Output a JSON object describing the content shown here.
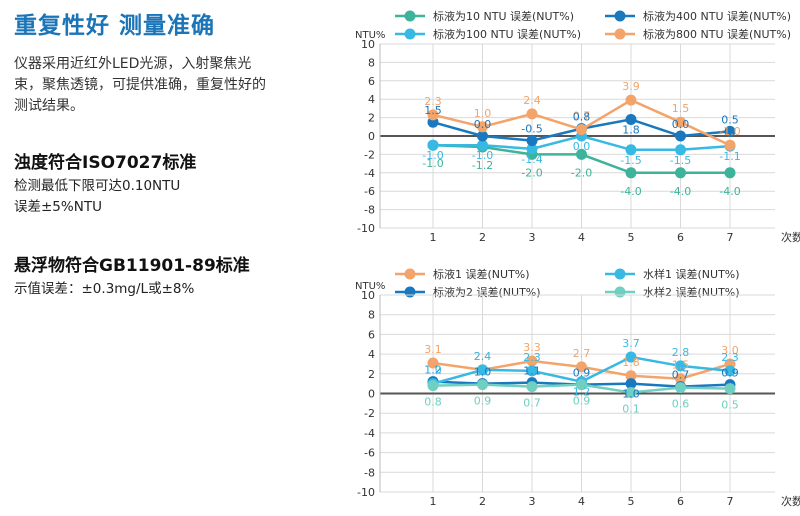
{
  "page": {
    "title": "重复性好 测量准确",
    "intro": "仪器采用近红外LED光源，入射聚焦光束，聚焦透镜，可提供准确，重复性好的测试结果。",
    "features": [
      {
        "heading": "浊度符合ISO7027标准",
        "lines": [
          "检测最低下限可达0.10NTU",
          "误差±5%NTU"
        ]
      },
      {
        "heading": "悬浮物符合GB11901-89标准",
        "lines": [
          "示值误差：±0.3mg/L或±8%"
        ]
      }
    ]
  },
  "chart_data": [
    {
      "type": "line",
      "ylabel": "NTU%",
      "xlabel": "次数",
      "x": [
        1,
        2,
        3,
        4,
        5,
        6,
        7
      ],
      "ylim": [
        -10,
        10
      ],
      "yticks": [
        10,
        8,
        6,
        4,
        2,
        0,
        -2,
        -4,
        -6,
        -8,
        -10
      ],
      "grid": true,
      "legend_position": "top",
      "series": [
        {
          "name": "标液为10 NTU 误差(NUT%)",
          "color": "#3db39b",
          "values": [
            -1.0,
            -1.2,
            -2.0,
            -2.0,
            -4.0,
            -4.0,
            -4.0
          ]
        },
        {
          "name": "标液为100 NTU 误差(NUT%)",
          "color": "#38b9e4",
          "values": [
            -1.0,
            -1.0,
            -1.4,
            0.0,
            -1.5,
            -1.5,
            -1.1
          ]
        },
        {
          "name": "标液为400 NTU 误差(NUT%)",
          "color": "#1a78be",
          "values": [
            1.5,
            0.0,
            -0.5,
            0.8,
            1.8,
            0.0,
            0.5
          ]
        },
        {
          "name": "标液为800 NTU 误差(NUT%)",
          "color": "#f3a46a",
          "values": [
            2.3,
            1.0,
            2.4,
            0.7,
            3.9,
            1.5,
            -1.0
          ]
        }
      ],
      "point_labels": [
        {
          "series": 3,
          "values": [
            "2.3",
            "1.0",
            "2.4",
            "0.7",
            "3.9",
            "1.5",
            "-1.0"
          ]
        },
        {
          "series": 2,
          "values": [
            "1.5",
            "0.0",
            "-0.5",
            "0.8",
            "1.8",
            "0.0",
            "0.5"
          ]
        },
        {
          "series": 1,
          "values": [
            "-1.0",
            "-1.0",
            "-1.4",
            "0.0",
            "-1.5",
            "-1.5",
            "-1.1"
          ]
        },
        {
          "series": 0,
          "values": [
            "-1.0",
            "-1.2",
            "-2.0",
            "-2.0",
            "-4.0",
            "-4.0",
            "-4.0"
          ]
        }
      ]
    },
    {
      "type": "line",
      "ylabel": "NTU%",
      "xlabel": "次数",
      "x": [
        1,
        2,
        3,
        4,
        5,
        6,
        7
      ],
      "ylim": [
        -10,
        10
      ],
      "yticks": [
        10,
        8,
        6,
        4,
        2,
        0,
        -2,
        -4,
        -6,
        -8,
        -10
      ],
      "grid": true,
      "legend_position": "top",
      "series": [
        {
          "name": "标液1 误差(NUT%)",
          "color": "#f3a46a",
          "values": [
            3.1,
            2.4,
            3.3,
            2.7,
            1.8,
            1.5,
            3.0
          ]
        },
        {
          "name": "标液为2 误差(NUT%)",
          "color": "#1a78be",
          "values": [
            1.2,
            1.0,
            1.1,
            0.9,
            1.0,
            0.7,
            0.9
          ]
        },
        {
          "name": "水样1 误差(NUT%)",
          "color": "#38b9e4",
          "values": [
            1.0,
            2.4,
            2.3,
            1.2,
            3.7,
            2.8,
            2.3
          ]
        },
        {
          "name": "水样2 误差(NUT%)",
          "color": "#6fcfc1",
          "values": [
            0.8,
            0.9,
            0.7,
            0.9,
            0.1,
            0.6,
            0.5
          ]
        }
      ],
      "point_labels": [
        {
          "series": 0,
          "values": [
            "3.1",
            "2.4",
            "3.3",
            "2.7",
            "1.8",
            "1.5",
            "3.0"
          ]
        },
        {
          "series": 1,
          "values": [
            "1.2",
            "1.0",
            "1.1",
            "0.9",
            "1.0",
            "0.7",
            "0.9"
          ]
        },
        {
          "series": 2,
          "values": [
            "1.0",
            "2.4",
            "2.3",
            "1.2",
            "3.7",
            "2.8",
            "2.3"
          ]
        },
        {
          "series": 3,
          "values": [
            "0.8",
            "0.9",
            "0.7",
            "0.9",
            "0.1",
            "0.6",
            "0.5"
          ]
        }
      ]
    }
  ]
}
